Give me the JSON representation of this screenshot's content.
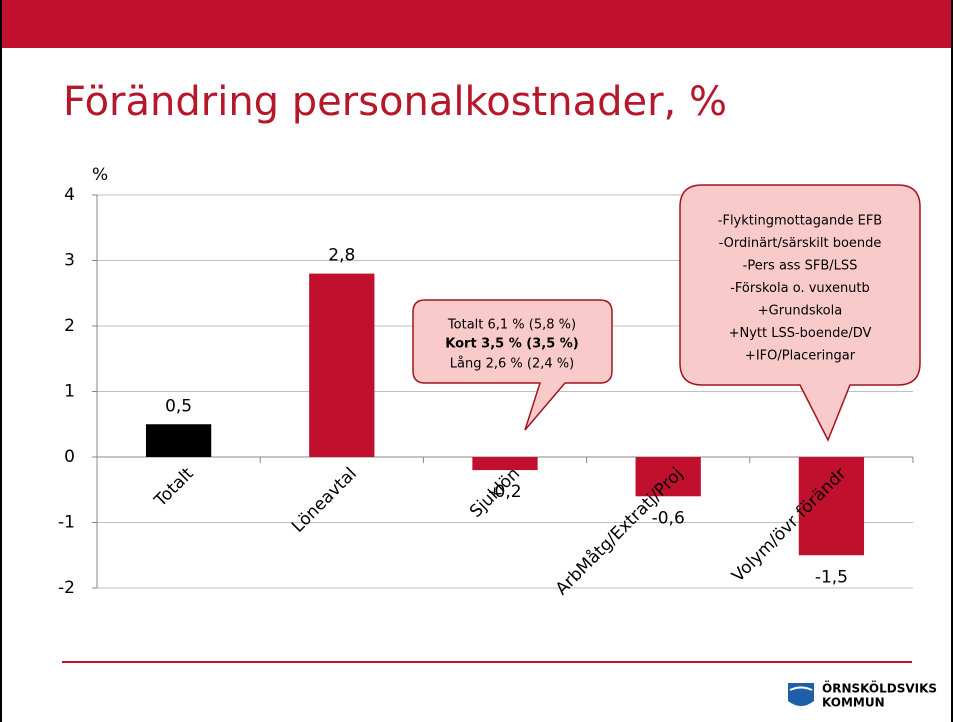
{
  "chart_data": {
    "type": "bar",
    "title": "Förändring personalkostnader, %",
    "y_label": "%",
    "categories": [
      "Totalt",
      "Löneavtal",
      "Sjuklön",
      "ArbMåtg/Extratj/Proj",
      "Volym/övr förändr"
    ],
    "values": [
      0.5,
      2.8,
      -0.2,
      -0.6,
      -1.5
    ],
    "value_labels": [
      "0,5",
      "2,8",
      "-0,2",
      "-0,6",
      "-1,5"
    ],
    "colors": [
      "#000000",
      "#c0102e",
      "#c0102e",
      "#c0102e",
      "#c0102e"
    ],
    "ylim": [
      -2,
      4
    ],
    "yticks": [
      -2,
      -1,
      0,
      1,
      2,
      3,
      4
    ],
    "grid": true,
    "annotations": [
      {
        "lines": [
          "Totalt 6,1 % (5,8 %)",
          "Kort 3,5 % (3,5 %)",
          "Lång 2,6 % (2,4 %)"
        ]
      },
      {
        "lines": [
          "-Flyktingmottagande EFB",
          "-Ordinärt/särskilt boende",
          "-Pers ass SFB/LSS",
          "-Förskola o. vuxenutb",
          "+Grundskola",
          "+Nytt LSS-boende/DV",
          "+IFO/Placeringar"
        ]
      }
    ]
  },
  "footer": {
    "logo_line1": "ÖRNSKÖLDSVIKS",
    "logo_line2": "KOMMUN"
  }
}
